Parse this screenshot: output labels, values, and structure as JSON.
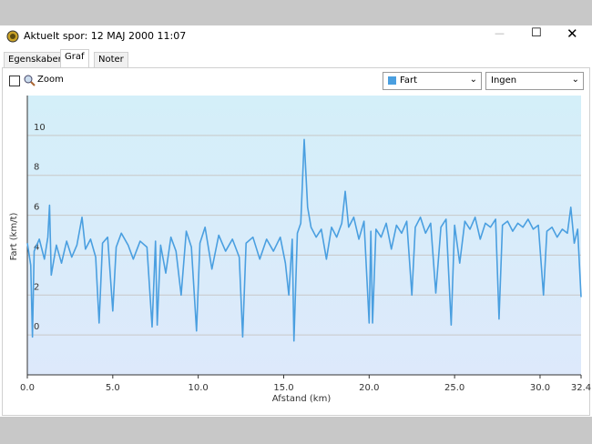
{
  "window": {
    "title": "Aktuelt spor: 12 MAJ 2000 11:07"
  },
  "tabs": [
    "Egenskaber",
    "Graf",
    "Noter"
  ],
  "toolbar": {
    "zoom": "Zoom",
    "overlay": "Ingen"
  },
  "chart_data": {
    "type": "line",
    "x_label": "Afstand  (km)",
    "y_label": "Fart (km/t)",
    "x": [
      0,
      0.2,
      0.3,
      0.4,
      0.7,
      1.0,
      1.2,
      1.3,
      1.4,
      1.7,
      2.0,
      2.3,
      2.6,
      2.9,
      3.2,
      3.4,
      3.7,
      4.0,
      4.2,
      4.4,
      4.7,
      5.0,
      5.2,
      5.5,
      5.9,
      6.2,
      6.6,
      7.0,
      7.3,
      7.5,
      7.6,
      7.8,
      8.1,
      8.4,
      8.7,
      9.0,
      9.3,
      9.6,
      9.9,
      10.1,
      10.4,
      10.8,
      11.2,
      11.6,
      12.0,
      12.4,
      12.6,
      12.8,
      13.2,
      13.6,
      14.0,
      14.4,
      14.8,
      15.1,
      15.3,
      15.5,
      15.6,
      15.8,
      16.0,
      16.2,
      16.4,
      16.6,
      16.9,
      17.2,
      17.5,
      17.8,
      18.1,
      18.4,
      18.6,
      18.8,
      19.1,
      19.4,
      19.7,
      20.0,
      20.1,
      20.2,
      20.4,
      20.7,
      21.0,
      21.3,
      21.6,
      21.9,
      22.2,
      22.5,
      22.7,
      23.0,
      23.3,
      23.6,
      23.9,
      24.2,
      24.5,
      24.8,
      25.0,
      25.3,
      25.6,
      25.9,
      26.2,
      26.5,
      26.8,
      27.1,
      27.4,
      27.6,
      27.8,
      28.1,
      28.4,
      28.7,
      29.0,
      29.3,
      29.6,
      29.9,
      30.2,
      30.4,
      30.7,
      31.0,
      31.3,
      31.6,
      31.8,
      32.0,
      32.2,
      32.4
    ],
    "series": [
      {
        "name": "Fart",
        "color": "#4a9fe0",
        "values": [
          4.6,
          3.5,
          -0.1,
          4.2,
          4.8,
          3.8,
          4.9,
          6.5,
          3.0,
          4.5,
          3.6,
          4.7,
          3.9,
          4.5,
          5.9,
          4.3,
          4.8,
          3.9,
          0.6,
          4.6,
          4.9,
          1.2,
          4.4,
          5.1,
          4.5,
          3.8,
          4.7,
          4.4,
          0.4,
          4.7,
          0.5,
          4.5,
          3.1,
          4.9,
          4.2,
          2.0,
          5.2,
          4.4,
          0.2,
          4.6,
          5.4,
          3.3,
          5.0,
          4.2,
          4.8,
          3.9,
          -0.1,
          4.6,
          4.9,
          3.8,
          4.8,
          4.2,
          4.9,
          3.6,
          2.0,
          4.8,
          -0.3,
          5.1,
          5.6,
          9.8,
          6.4,
          5.4,
          4.9,
          5.3,
          3.8,
          5.4,
          4.9,
          5.6,
          7.2,
          5.4,
          5.9,
          4.8,
          5.7,
          0.6,
          5.2,
          0.6,
          5.3,
          4.9,
          5.6,
          4.3,
          5.5,
          5.1,
          5.7,
          2.0,
          5.4,
          5.9,
          5.1,
          5.6,
          2.1,
          5.4,
          5.8,
          0.5,
          5.5,
          3.6,
          5.7,
          5.3,
          5.9,
          4.8,
          5.6,
          5.4,
          5.8,
          0.8,
          5.5,
          5.7,
          5.2,
          5.6,
          5.4,
          5.8,
          5.3,
          5.5,
          2.0,
          5.2,
          5.4,
          4.9,
          5.3,
          5.1,
          6.4,
          4.6,
          5.3,
          1.9
        ]
      }
    ],
    "xlim": [
      0,
      32.4
    ],
    "ylim": [
      -2,
      12
    ],
    "xticks": [
      {
        "value": 0,
        "label": "0.0"
      },
      {
        "value": 5,
        "label": "5.0"
      },
      {
        "value": 10,
        "label": "10.0"
      },
      {
        "value": 15,
        "label": "15.0"
      },
      {
        "value": 20,
        "label": "20.0"
      },
      {
        "value": 25,
        "label": "25.0"
      },
      {
        "value": 30,
        "label": "30.0"
      },
      {
        "value": 32.4,
        "label": "32.4"
      }
    ],
    "yticks": [
      0,
      2,
      4,
      6,
      8,
      10
    ],
    "grid": true
  }
}
